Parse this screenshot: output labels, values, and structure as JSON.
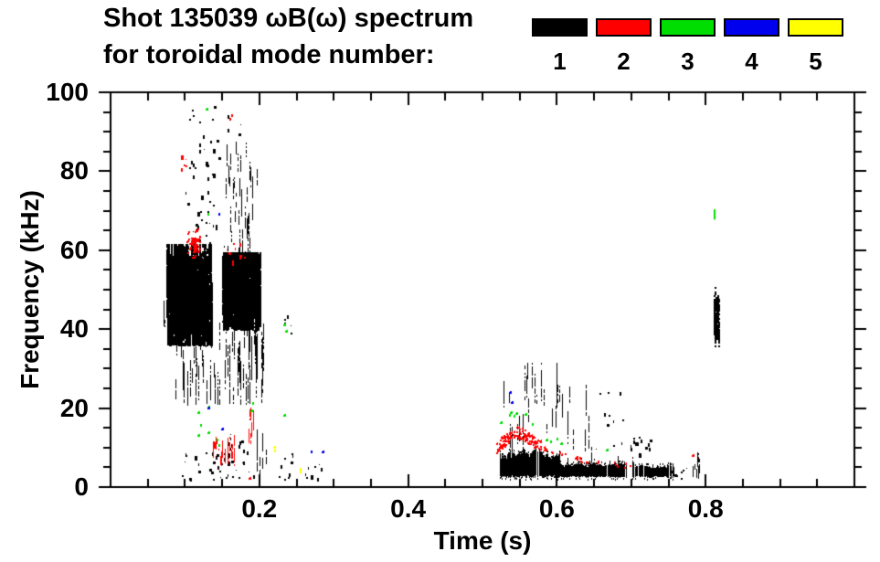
{
  "title": {
    "line1": "Shot 135039 ωB(ω) spectrum",
    "line2": "for toroidal mode number:"
  },
  "chart_data": {
    "type": "scatter",
    "title": "Shot 135039 ωB(ω) spectrum for toroidal mode number",
    "xlabel": "Time (s)",
    "ylabel": "Frequency (kHz)",
    "xlim": [
      0.0,
      1.0
    ],
    "ylim": [
      0,
      100
    ],
    "xticks_major": [
      0.2,
      0.4,
      0.6,
      0.8
    ],
    "xtick_labels": [
      "0.2",
      "0.4",
      "0.6",
      "0.8"
    ],
    "xtick_minor_step": 0.05,
    "yticks_major": [
      0,
      20,
      40,
      60,
      80,
      100
    ],
    "ytick_labels": [
      "0",
      "20",
      "40",
      "60",
      "80",
      "100"
    ],
    "ytick_minor_step": 5,
    "grid": false,
    "legend_position": "top-right",
    "series": [
      {
        "name": "1",
        "color": "#000000"
      },
      {
        "name": "2",
        "color": "#ff0000"
      },
      {
        "name": "3",
        "color": "#00dd00"
      },
      {
        "name": "4",
        "color": "#0000ee"
      },
      {
        "name": "5",
        "color": "#ffff00"
      }
    ],
    "clusters": [
      {
        "m": 1,
        "s": "vstreaks",
        "t": [
          0.068,
          0.092
        ],
        "f": [
          40,
          47
        ],
        "n": 14,
        "len": [
          1.5,
          5
        ],
        "w": 1
      },
      {
        "m": 1,
        "s": "vstreaks",
        "t": [
          0.075,
          0.135
        ],
        "f": [
          37,
          60
        ],
        "n": 230,
        "len": [
          4,
          18
        ],
        "w": 2
      },
      {
        "m": 1,
        "s": "vstreaks",
        "t": [
          0.082,
          0.128
        ],
        "f": [
          40,
          57
        ],
        "n": 150,
        "len": [
          6,
          16
        ],
        "w": 2
      },
      {
        "m": 1,
        "s": "vstreaks",
        "t": [
          0.15,
          0.2
        ],
        "f": [
          41,
          58
        ],
        "n": 290,
        "len": [
          5,
          16
        ],
        "w": 2
      },
      {
        "m": 1,
        "s": "vstreaks",
        "t": [
          0.086,
          0.205
        ],
        "f": [
          22,
          41
        ],
        "n": 75,
        "len": [
          3,
          12
        ],
        "w": 1
      },
      {
        "m": 1,
        "s": "specks",
        "t": [
          0.098,
          0.148
        ],
        "f": [
          60,
          88
        ],
        "n": 40,
        "sz": 2
      },
      {
        "m": 1,
        "s": "vstreaks",
        "t": [
          0.152,
          0.197
        ],
        "f": [
          58,
          86
        ],
        "n": 42,
        "len": [
          2,
          7
        ],
        "w": 1
      },
      {
        "m": 1,
        "s": "specks",
        "t": [
          0.105,
          0.175
        ],
        "f": [
          88,
          97
        ],
        "n": 11,
        "sz": 2
      },
      {
        "m": 1,
        "s": "specks",
        "t": [
          0.09,
          0.196
        ],
        "f": [
          2,
          9
        ],
        "n": 38,
        "sz": 2
      },
      {
        "m": 1,
        "s": "specks",
        "t": [
          0.155,
          0.182
        ],
        "f": [
          9,
          15
        ],
        "n": 10,
        "sz": 2
      },
      {
        "m": 1,
        "s": "vstreaks",
        "t": [
          0.196,
          0.209
        ],
        "f": [
          4,
          13
        ],
        "n": 9,
        "len": [
          2,
          6
        ],
        "w": 1
      },
      {
        "m": 1,
        "s": "specks",
        "t": [
          0.225,
          0.248
        ],
        "f": [
          2,
          9
        ],
        "n": 9,
        "sz": 2
      },
      {
        "m": 1,
        "s": "specks",
        "t": [
          0.233,
          0.244
        ],
        "f": [
          39,
          44
        ],
        "n": 5,
        "sz": 2
      },
      {
        "m": 1,
        "s": "specks",
        "t": [
          0.258,
          0.285
        ],
        "f": [
          2,
          6
        ],
        "n": 8,
        "sz": 2
      },
      {
        "m": 1,
        "s": "band",
        "t": [
          0.523,
          0.603
        ],
        "f": [
          2.2,
          9.8
        ]
      },
      {
        "m": 1,
        "s": "band",
        "t": [
          0.603,
          0.693
        ],
        "f": [
          2.3,
          6.8
        ]
      },
      {
        "m": 1,
        "s": "band",
        "t": [
          0.701,
          0.757
        ],
        "f": [
          2.4,
          6.0
        ]
      },
      {
        "m": 1,
        "s": "vstreaks",
        "t": [
          0.524,
          0.6
        ],
        "f": [
          9,
          30
        ],
        "n": 24,
        "len": [
          2,
          12
        ],
        "w": 1
      },
      {
        "m": 1,
        "s": "vstreaks",
        "t": [
          0.6,
          0.648
        ],
        "f": [
          7,
          27
        ],
        "n": 11,
        "len": [
          2,
          9
        ],
        "w": 1
      },
      {
        "m": 1,
        "s": "specks",
        "t": [
          0.652,
          0.695
        ],
        "f": [
          8,
          26
        ],
        "n": 11,
        "sz": 2
      },
      {
        "m": 1,
        "s": "specks",
        "t": [
          0.698,
          0.726
        ],
        "f": [
          8,
          13
        ],
        "n": 15,
        "sz": 2
      },
      {
        "m": 1,
        "s": "specks",
        "t": [
          0.752,
          0.778
        ],
        "f": [
          2.2,
          5
        ],
        "n": 8,
        "sz": 2
      },
      {
        "m": 1,
        "s": "vstreaks",
        "t": [
          0.783,
          0.791
        ],
        "f": [
          3,
          8
        ],
        "n": 7,
        "len": [
          1.5,
          4
        ],
        "w": 1
      },
      {
        "m": 1,
        "s": "vstreaks",
        "t": [
          0.81,
          0.817
        ],
        "f": [
          35,
          47
        ],
        "n": 16,
        "len": [
          3,
          9
        ],
        "w": 2
      },
      {
        "m": 1,
        "s": "specks",
        "t": [
          0.811,
          0.815
        ],
        "f": [
          48,
          51.5
        ],
        "n": 3,
        "sz": 2
      },
      {
        "m": 2,
        "s": "blob",
        "t": [
          0.098,
          0.124
        ],
        "f": [
          57,
          66
        ],
        "n": 60
      },
      {
        "m": 2,
        "s": "specks",
        "t": [
          0.093,
          0.102
        ],
        "f": [
          80,
          85
        ],
        "n": 6,
        "sz": 2
      },
      {
        "m": 2,
        "s": "pts",
        "pts": [
          [
            0.162,
            94.5
          ],
          [
            0.16,
            93.6
          ]
        ]
      },
      {
        "m": 2,
        "s": "specks",
        "t": [
          0.155,
          0.18
        ],
        "f": [
          56,
          62
        ],
        "n": 10,
        "sz": 2
      },
      {
        "m": 2,
        "s": "vstreaks",
        "t": [
          0.137,
          0.168
        ],
        "f": [
          6.5,
          12
        ],
        "n": 20,
        "len": [
          1.5,
          4
        ],
        "w": 1
      },
      {
        "m": 2,
        "s": "blob",
        "t": [
          0.135,
          0.143
        ],
        "f": [
          9.5,
          12
        ],
        "n": 10
      },
      {
        "m": 2,
        "s": "vstreaks",
        "t": [
          0.186,
          0.192
        ],
        "f": [
          12,
          20.5
        ],
        "n": 9,
        "len": [
          1.5,
          4
        ],
        "w": 1
      },
      {
        "m": 2,
        "s": "pts",
        "pts": [
          [
            0.187,
            2.5
          ]
        ]
      },
      {
        "m": 2,
        "s": "ridge",
        "path": [
          [
            0.518,
            10.2
          ],
          [
            0.53,
            12.0
          ],
          [
            0.542,
            14.2
          ],
          [
            0.552,
            13.8
          ],
          [
            0.565,
            12.0
          ],
          [
            0.578,
            10.4
          ]
        ],
        "n": 130,
        "th": 3
      },
      {
        "m": 2,
        "s": "ridge",
        "path": [
          [
            0.578,
            10.2
          ],
          [
            0.6,
            8.6
          ],
          [
            0.63,
            7.0
          ],
          [
            0.665,
            6.0
          ],
          [
            0.7,
            5.5
          ]
        ],
        "n": 30,
        "th": 1.4
      },
      {
        "m": 2,
        "s": "pts",
        "pts": [
          [
            0.783,
            8.3
          ]
        ]
      },
      {
        "m": 3,
        "s": "pts",
        "pts": [
          [
            0.118,
            19.2
          ],
          [
            0.1205,
            16.0
          ],
          [
            0.118,
            13.4
          ],
          [
            0.131,
            14.1
          ],
          [
            0.1315,
            20.5
          ],
          [
            0.142,
            12.2
          ],
          [
            0.1455,
            10.8
          ],
          [
            0.13,
            69.5
          ],
          [
            0.129,
            96.0
          ],
          [
            0.189,
            19.7
          ],
          [
            0.1905,
            21.5
          ],
          [
            0.234,
            41.5
          ],
          [
            0.236,
            39.8
          ],
          [
            0.233,
            18.5
          ]
        ]
      },
      {
        "m": 3,
        "s": "pts",
        "pts": [
          [
            0.525,
            16.6
          ],
          [
            0.5355,
            18.6
          ],
          [
            0.538,
            19.3
          ],
          [
            0.5415,
            18.2
          ],
          [
            0.545,
            19.0
          ],
          [
            0.5575,
            18.8
          ],
          [
            0.566,
            16.2
          ],
          [
            0.5855,
            12.2
          ],
          [
            0.591,
            11.7
          ],
          [
            0.6,
            12.4
          ],
          [
            0.606,
            11.4
          ],
          [
            0.667,
            9.7
          ]
        ]
      },
      {
        "m": 3,
        "s": "pts",
        "vl": 2.6,
        "pts": [
          [
            0.8105,
            69.0
          ]
        ]
      },
      {
        "m": 4,
        "s": "pts",
        "pts": [
          [
            0.131,
            20.4
          ],
          [
            0.15,
            15.0
          ],
          [
            0.145,
            69.5
          ],
          [
            0.269,
            9.3
          ],
          [
            0.285,
            9.2
          ],
          [
            0.537,
            24.2
          ],
          [
            0.5395,
            21.8
          ]
        ]
      },
      {
        "m": 5,
        "s": "pts",
        "pts": [
          [
            0.22,
            10.4
          ],
          [
            0.2205,
            9.5
          ],
          [
            0.254,
            4.9
          ],
          [
            0.2545,
            4.2
          ]
        ]
      }
    ]
  }
}
